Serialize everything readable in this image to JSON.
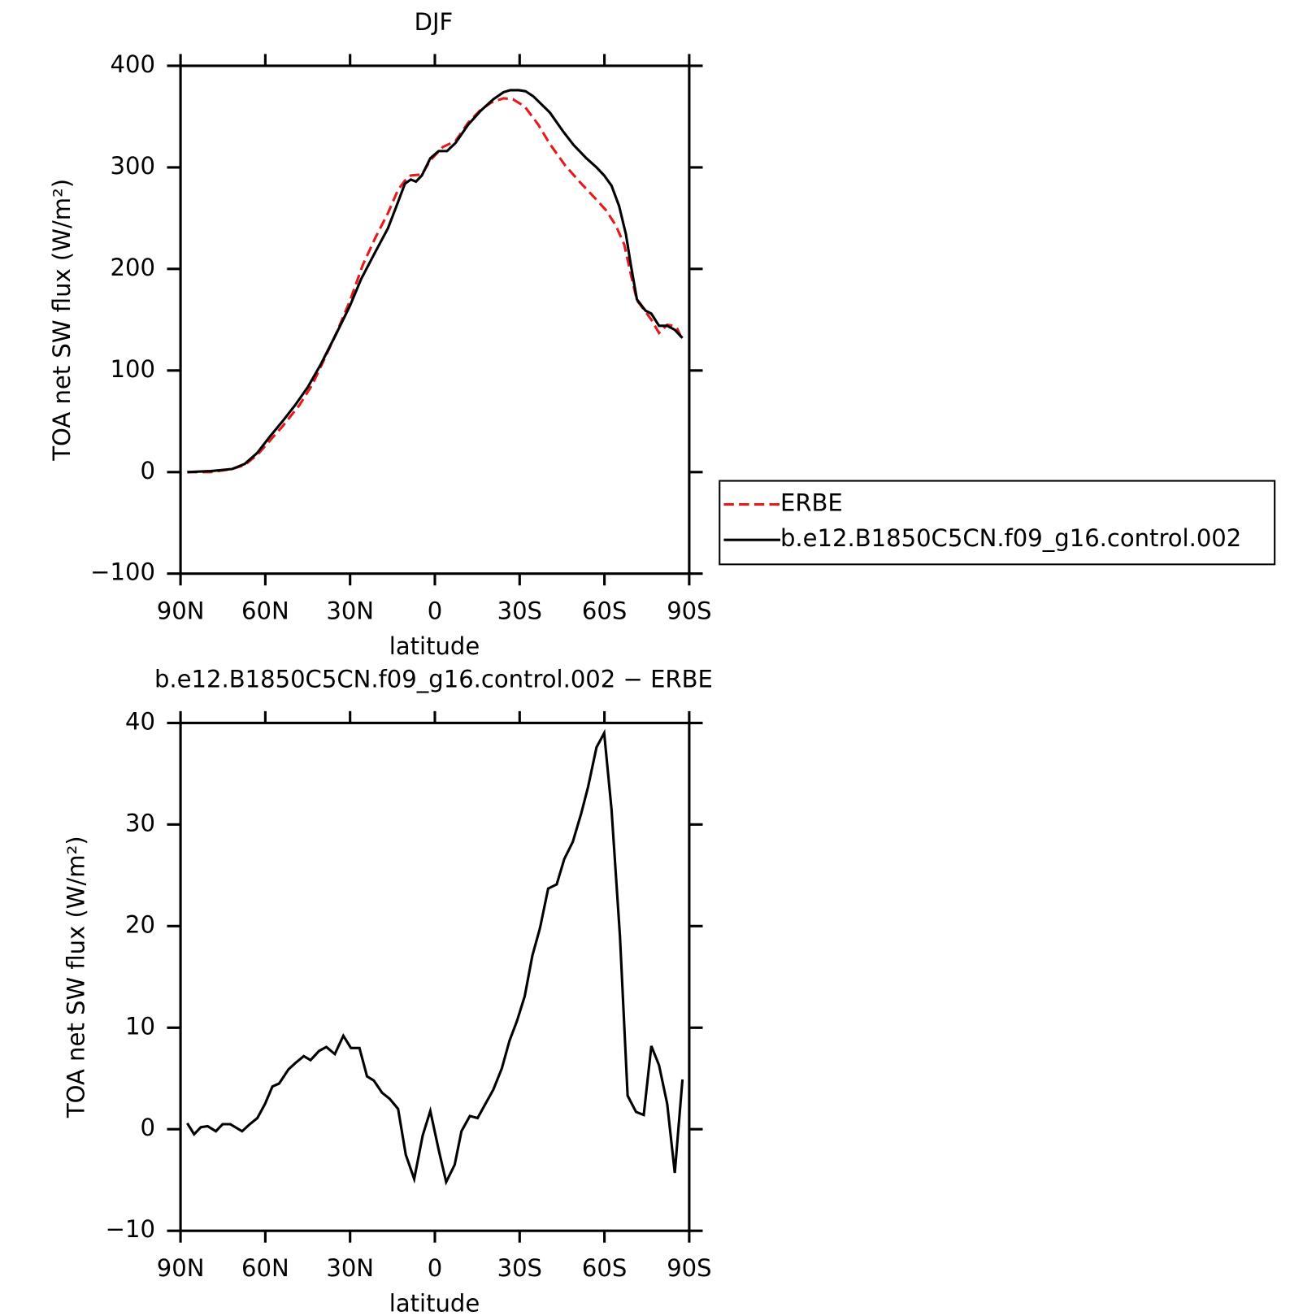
{
  "chart_data": [
    {
      "type": "line",
      "title": "DJF",
      "xlabel": "latitude",
      "ylabel": "TOA net SW flux (W/m²)",
      "xlim": [
        90,
        -90
      ],
      "xticks": [
        {
          "value": 90,
          "label": "90N"
        },
        {
          "value": 60,
          "label": "60N"
        },
        {
          "value": 30,
          "label": "30N"
        },
        0,
        {
          "value": -30,
          "label": "30S"
        },
        {
          "value": -60,
          "label": "60S"
        },
        {
          "value": -90,
          "label": "90S"
        }
      ],
      "ylim": [
        -100,
        400
      ],
      "yticks": [
        {
          "value": -100,
          "label": "−100"
        },
        0,
        100,
        200,
        300,
        400
      ],
      "legend": "right",
      "series": [
        {
          "name": "ERBE",
          "color": "#e41a1c",
          "dash": "dashed",
          "x": [
            87.6,
            79.3,
            71.8,
            67.3,
            62.8,
            58.4,
            53.9,
            47.9,
            43.4,
            39.0,
            34.5,
            30.0,
            25.5,
            21.0,
            16.6,
            13.0,
            10.6,
            8.5,
            4.6,
            1.6,
            -2.8,
            -7.3,
            -11.8,
            -16.3,
            -20.1,
            -24.3,
            -27.6,
            -31.8,
            -36.6,
            -40.7,
            -46.1,
            -51.5,
            -56.9,
            -60.5,
            -64.0,
            -67.0,
            -69.4,
            -71.5,
            -74.5,
            -76.6,
            -79.3,
            -82.2,
            -84.3,
            -85.8,
            -87.6
          ],
          "values": [
            0,
            0,
            3,
            7,
            17,
            31,
            45,
            66,
            86,
            112,
            139,
            169,
            204,
            231,
            255,
            278,
            287,
            292,
            293,
            307,
            320,
            326,
            344,
            357,
            364,
            368,
            367,
            360,
            342,
            323,
            302,
            285,
            269,
            258,
            243,
            224,
            194,
            169,
            158,
            150,
            137,
            145,
            144,
            141,
            130
          ]
        },
        {
          "name": "b.e12.B1850C5CN.f09_g16.control.002",
          "color": "#000000",
          "dash": "solid",
          "x": [
            87.6,
            79.3,
            71.8,
            67.3,
            62.8,
            58.4,
            53.9,
            49.4,
            44.9,
            40.4,
            35.1,
            30.0,
            26.1,
            21.0,
            16.6,
            13.0,
            10.6,
            8.5,
            6.7,
            4.6,
            1.6,
            -1.3,
            -4.3,
            -7.3,
            -11.8,
            -16.3,
            -20.7,
            -24.3,
            -26.7,
            -29.7,
            -32.1,
            -34.8,
            -40.7,
            -45.5,
            -49.1,
            -53.6,
            -57.2,
            -59.9,
            -62.5,
            -65.2,
            -67.6,
            -69.4,
            -71.5,
            -74.5,
            -76.6,
            -79.3,
            -82.2,
            -84.9,
            -87.6
          ],
          "values": [
            0,
            1,
            3,
            8,
            19,
            35,
            50,
            66,
            84,
            106,
            135,
            164,
            190,
            217,
            240,
            266,
            284,
            288,
            286,
            292,
            309,
            316,
            316,
            324,
            342,
            356,
            367,
            374,
            376,
            376,
            375,
            370,
            354,
            335,
            322,
            309,
            300,
            292,
            282,
            262,
            234,
            203,
            170,
            159,
            156,
            144,
            144,
            140,
            132
          ]
        }
      ]
    },
    {
      "type": "line",
      "title": "b.e12.B1850C5CN.f09_g16.control.002 − ERBE",
      "xlabel": "latitude",
      "ylabel": "TOA net SW flux (W/m²)",
      "xlim": [
        90,
        -90
      ],
      "xticks": [
        {
          "value": 90,
          "label": "90N"
        },
        {
          "value": 60,
          "label": "60N"
        },
        {
          "value": 30,
          "label": "30N"
        },
        0,
        {
          "value": -30,
          "label": "30S"
        },
        {
          "value": -60,
          "label": "60S"
        },
        {
          "value": -90,
          "label": "90S"
        }
      ],
      "ylim": [
        -10,
        40
      ],
      "yticks": [
        {
          "value": -10,
          "label": "−10"
        },
        0,
        10,
        20,
        30,
        40
      ],
      "color": "#000000",
      "x": [
        87.6,
        85.2,
        82.8,
        80.4,
        77.5,
        75.1,
        72.4,
        68.2,
        65.5,
        62.8,
        60.1,
        57.5,
        55.1,
        51.8,
        49.4,
        46.4,
        44.0,
        41.0,
        38.4,
        35.4,
        32.4,
        29.7,
        26.7,
        24.0,
        21.6,
        18.7,
        16.0,
        13.0,
        10.3,
        7.3,
        4.3,
        1.6,
        -1.4,
        -4.0,
        -7.0,
        -9.4,
        -12.4,
        -15.1,
        -17.5,
        -20.7,
        -23.7,
        -26.4,
        -29.1,
        -31.8,
        -34.5,
        -37.2,
        -40.1,
        -43.1,
        -45.8,
        -48.8,
        -51.8,
        -54.2,
        -57.2,
        -59.9,
        -62.5,
        -65.5,
        -68.2,
        -71.2,
        -73.9,
        -76.6,
        -79.3,
        -82.2,
        -84.9,
        -87.6
      ],
      "values": [
        0.6,
        -0.5,
        0.2,
        0.3,
        -0.2,
        0.5,
        0.5,
        -0.2,
        0.5,
        1.1,
        2.5,
        4.2,
        4.5,
        5.9,
        6.5,
        7.2,
        6.8,
        7.7,
        8.1,
        7.4,
        9.2,
        8.0,
        8.0,
        5.2,
        4.8,
        3.6,
        3.0,
        2.0,
        -2.5,
        -4.9,
        -0.6,
        1.8,
        -2.1,
        -5.2,
        -3.5,
        -0.2,
        1.3,
        1.1,
        2.3,
        3.9,
        6.0,
        8.7,
        10.7,
        13.1,
        17.1,
        19.8,
        23.7,
        24.1,
        26.6,
        28.3,
        31.1,
        33.7,
        37.6,
        39.0,
        31.5,
        19.0,
        3.3,
        1.7,
        1.4,
        8.2,
        6.3,
        2.5,
        -4.3,
        4.9
      ]
    }
  ]
}
